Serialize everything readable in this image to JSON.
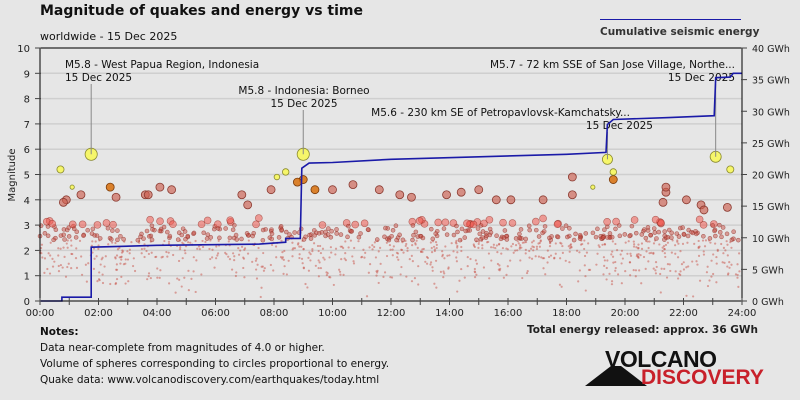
{
  "header": {
    "title": "Magnitude of quakes and energy vs time",
    "subtitle": "worldwide - 15 Dec 2025",
    "legend_label": "Cumulative seismic energy"
  },
  "notes": {
    "heading": "Notes:",
    "lines": [
      "Data near-complete from magnitudes of 4.0 or higher.",
      "Volume of spheres corresponding to circles proportional to energy.",
      "Quake data: www.volcanodiscovery.com/earthquakes/today.html"
    ]
  },
  "total_energy": "Total energy released: approx. 36 GWh",
  "logo": {
    "line1": "VOLCANO",
    "line2": "DISCOVERY"
  },
  "colors": {
    "energy_line": "#1a1aa8",
    "large_quake": "#ffff33",
    "quake": "#e05040",
    "logo_red": "#c8202a"
  },
  "chart_data": {
    "type": "scatter",
    "title": "Magnitude of quakes and energy vs time",
    "subtitle": "worldwide - 15 Dec 2025",
    "xlabel": "",
    "ylabel": "Magnitude",
    "y2label": "Cumulative seismic energy",
    "xlim": [
      0,
      24
    ],
    "ylim": [
      0,
      10
    ],
    "y2lim": [
      0,
      40
    ],
    "grid": true,
    "legend": "top-right",
    "x_ticks": [
      "00:00",
      "02:00",
      "04:00",
      "06:00",
      "08:00",
      "10:00",
      "12:00",
      "14:00",
      "16:00",
      "18:00",
      "20:00",
      "22:00",
      "24:00"
    ],
    "y_ticks": [
      "0",
      "1",
      "2",
      "3",
      "4",
      "5",
      "6",
      "7",
      "8",
      "9",
      "10"
    ],
    "y2_ticks": [
      "0 GWh",
      "5 GWh",
      "10 GWh",
      "15 GWh",
      "20 GWh",
      "25 GWh",
      "30 GWh",
      "35 GWh",
      "40 GWh"
    ],
    "annotations": [
      {
        "label": "M5.8 - West Papua Region, Indonesia",
        "date": "15 Dec 2025",
        "hour": 1.75,
        "mag": 5.8
      },
      {
        "label": "M5.8 - Indonesia: Borneo",
        "date": "15 Dec 2025",
        "hour": 9.0,
        "mag": 5.8
      },
      {
        "label": "M5.6 - 230 km SE of Petropavlovsk-Kamchatsky...",
        "date": "15 Dec 2025",
        "hour": 19.4,
        "mag": 5.6
      },
      {
        "label": "M5.7 - 72 km SSE of San Jose Village, Northe...",
        "date": "15 Dec 2025",
        "hour": 23.1,
        "mag": 5.7
      }
    ],
    "large_quakes": [
      {
        "hour": 1.75,
        "mag": 5.8
      },
      {
        "hour": 0.7,
        "mag": 5.2
      },
      {
        "hour": 1.1,
        "mag": 4.5
      },
      {
        "hour": 9.0,
        "mag": 5.8
      },
      {
        "hour": 8.4,
        "mag": 5.1
      },
      {
        "hour": 8.1,
        "mag": 4.9
      },
      {
        "hour": 19.4,
        "mag": 5.6
      },
      {
        "hour": 19.6,
        "mag": 5.1
      },
      {
        "hour": 18.9,
        "mag": 4.5
      },
      {
        "hour": 23.1,
        "mag": 5.7
      },
      {
        "hour": 23.6,
        "mag": 5.2
      }
    ],
    "medium_quakes": [
      {
        "hour": 2.4,
        "mag": 4.5,
        "c": "o"
      },
      {
        "hour": 9.0,
        "mag": 4.8,
        "c": "o"
      },
      {
        "hour": 9.4,
        "mag": 4.4,
        "c": "o"
      },
      {
        "hour": 19.6,
        "mag": 4.8,
        "c": "o"
      },
      {
        "hour": 8.8,
        "mag": 4.7,
        "c": "o"
      },
      {
        "hour": 0.9,
        "mag": 4.0
      },
      {
        "hour": 0.8,
        "mag": 3.9
      },
      {
        "hour": 1.4,
        "mag": 4.2
      },
      {
        "hour": 2.6,
        "mag": 4.1
      },
      {
        "hour": 3.6,
        "mag": 4.2
      },
      {
        "hour": 3.7,
        "mag": 4.2
      },
      {
        "hour": 4.5,
        "mag": 4.4
      },
      {
        "hour": 4.1,
        "mag": 4.5
      },
      {
        "hour": 6.9,
        "mag": 4.2
      },
      {
        "hour": 7.1,
        "mag": 3.8
      },
      {
        "hour": 7.9,
        "mag": 4.4
      },
      {
        "hour": 10.0,
        "mag": 4.4
      },
      {
        "hour": 10.7,
        "mag": 4.6
      },
      {
        "hour": 11.6,
        "mag": 4.4
      },
      {
        "hour": 12.3,
        "mag": 4.2
      },
      {
        "hour": 12.7,
        "mag": 4.1
      },
      {
        "hour": 13.9,
        "mag": 4.2
      },
      {
        "hour": 14.4,
        "mag": 4.3
      },
      {
        "hour": 15.0,
        "mag": 4.4
      },
      {
        "hour": 15.6,
        "mag": 4.0
      },
      {
        "hour": 16.1,
        "mag": 4.0
      },
      {
        "hour": 17.2,
        "mag": 4.0
      },
      {
        "hour": 18.2,
        "mag": 4.9
      },
      {
        "hour": 18.2,
        "mag": 4.2
      },
      {
        "hour": 21.4,
        "mag": 4.3
      },
      {
        "hour": 21.4,
        "mag": 4.5
      },
      {
        "hour": 21.3,
        "mag": 3.9
      },
      {
        "hour": 22.1,
        "mag": 4.0
      },
      {
        "hour": 22.6,
        "mag": 3.8
      },
      {
        "hour": 23.5,
        "mag": 3.7
      },
      {
        "hour": 22.7,
        "mag": 3.6
      }
    ],
    "energy_series": {
      "name": "Cumulative seismic energy",
      "points": [
        [
          0,
          0
        ],
        [
          0.75,
          0
        ],
        [
          0.75,
          0.6
        ],
        [
          1.75,
          0.6
        ],
        [
          1.75,
          8.5
        ],
        [
          4.0,
          8.8
        ],
        [
          7.5,
          9.0
        ],
        [
          8.4,
          9.3
        ],
        [
          8.4,
          9.9
        ],
        [
          8.9,
          9.9
        ],
        [
          8.95,
          21.0
        ],
        [
          9.2,
          21.8
        ],
        [
          10.0,
          21.9
        ],
        [
          12.0,
          22.4
        ],
        [
          15.0,
          22.8
        ],
        [
          18.0,
          23.2
        ],
        [
          19.35,
          23.5
        ],
        [
          19.4,
          27.9
        ],
        [
          19.6,
          28.7
        ],
        [
          21.5,
          29.0
        ],
        [
          23.05,
          29.3
        ],
        [
          23.1,
          35.3
        ],
        [
          23.6,
          35.4
        ],
        [
          23.7,
          36.0
        ],
        [
          24,
          36.0
        ]
      ]
    }
  }
}
